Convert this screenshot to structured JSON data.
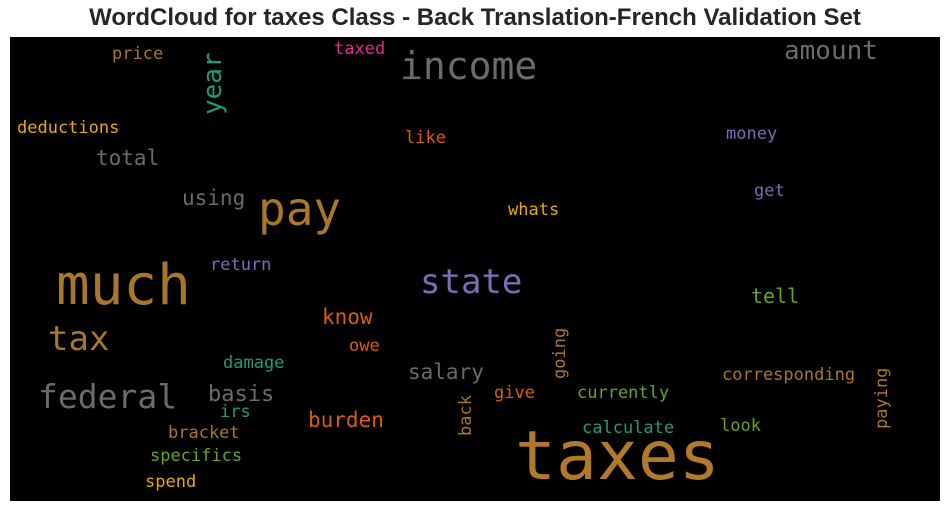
{
  "chart_data": {
    "type": "wordcloud",
    "title": "WordCloud for taxes Class - Back Translation-French Validation Set",
    "background": "#000000",
    "words": [
      {
        "text": "taxes",
        "weight": 1.0,
        "color": "#b07a2a",
        "orientation": "horizontal"
      },
      {
        "text": "much",
        "weight": 0.85,
        "color": "#a8772a",
        "orientation": "horizontal"
      },
      {
        "text": "pay",
        "weight": 0.72,
        "color": "#a8772a",
        "orientation": "horizontal"
      },
      {
        "text": "income",
        "weight": 0.55,
        "color": "#6b6b6b",
        "orientation": "horizontal"
      },
      {
        "text": "state",
        "weight": 0.55,
        "color": "#7570b3",
        "orientation": "horizontal"
      },
      {
        "text": "federal",
        "weight": 0.5,
        "color": "#6b6b6b",
        "orientation": "horizontal"
      },
      {
        "text": "tax",
        "weight": 0.5,
        "color": "#a8772a",
        "orientation": "horizontal"
      },
      {
        "text": "amount",
        "weight": 0.4,
        "color": "#6b6b6b",
        "orientation": "horizontal"
      },
      {
        "text": "year",
        "weight": 0.38,
        "color": "#1b9e77",
        "orientation": "vertical"
      },
      {
        "text": "salary",
        "weight": 0.3,
        "color": "#6b6b6b",
        "orientation": "horizontal"
      },
      {
        "text": "basis",
        "weight": 0.3,
        "color": "#6b6b6b",
        "orientation": "horizontal"
      },
      {
        "text": "total",
        "weight": 0.3,
        "color": "#6b6b6b",
        "orientation": "horizontal"
      },
      {
        "text": "using",
        "weight": 0.3,
        "color": "#6b6b6b",
        "orientation": "horizontal"
      },
      {
        "text": "know",
        "weight": 0.28,
        "color": "#d95f02",
        "orientation": "horizontal"
      },
      {
        "text": "burden",
        "weight": 0.28,
        "color": "#d95f02",
        "orientation": "horizontal"
      },
      {
        "text": "tell",
        "weight": 0.27,
        "color": "#66a61e",
        "orientation": "horizontal"
      },
      {
        "text": "going",
        "weight": 0.24,
        "color": "#a8772a",
        "orientation": "vertical"
      },
      {
        "text": "back",
        "weight": 0.24,
        "color": "#a8772a",
        "orientation": "vertical"
      },
      {
        "text": "paying",
        "weight": 0.24,
        "color": "#a8772a",
        "orientation": "vertical"
      },
      {
        "text": "corresponding",
        "weight": 0.24,
        "color": "#a8772a",
        "orientation": "horizontal"
      },
      {
        "text": "currently",
        "weight": 0.24,
        "color": "#66a61e",
        "orientation": "horizontal"
      },
      {
        "text": "calculate",
        "weight": 0.24,
        "color": "#1b9e77",
        "orientation": "horizontal"
      },
      {
        "text": "whats",
        "weight": 0.24,
        "color": "#e6ab02",
        "orientation": "horizontal"
      },
      {
        "text": "deductions",
        "weight": 0.24,
        "color": "#e6ab02",
        "orientation": "horizontal"
      },
      {
        "text": "specifics",
        "weight": 0.24,
        "color": "#66a61e",
        "orientation": "horizontal"
      },
      {
        "text": "money",
        "weight": 0.22,
        "color": "#7570b3",
        "orientation": "horizontal"
      },
      {
        "text": "price",
        "weight": 0.22,
        "color": "#a8772a",
        "orientation": "horizontal"
      },
      {
        "text": "like",
        "weight": 0.22,
        "color": "#d95f02",
        "orientation": "horizontal"
      },
      {
        "text": "owe",
        "weight": 0.22,
        "color": "#d95f02",
        "orientation": "horizontal"
      },
      {
        "text": "give",
        "weight": 0.22,
        "color": "#d95f02",
        "orientation": "horizontal"
      },
      {
        "text": "look",
        "weight": 0.22,
        "color": "#66a61e",
        "orientation": "horizontal"
      },
      {
        "text": "damage",
        "weight": 0.22,
        "color": "#1b9e77",
        "orientation": "horizontal"
      },
      {
        "text": "bracket",
        "weight": 0.22,
        "color": "#a8772a",
        "orientation": "horizontal"
      },
      {
        "text": "spend",
        "weight": 0.22,
        "color": "#e6ab02",
        "orientation": "horizontal"
      },
      {
        "text": "return",
        "weight": 0.2,
        "color": "#7570b3",
        "orientation": "horizontal"
      },
      {
        "text": "get",
        "weight": 0.2,
        "color": "#7570b3",
        "orientation": "horizontal"
      },
      {
        "text": "irs",
        "weight": 0.2,
        "color": "#1b9e77",
        "orientation": "horizontal"
      },
      {
        "text": "taxed",
        "weight": 0.2,
        "color": "#e7298a",
        "orientation": "horizontal"
      }
    ]
  }
}
